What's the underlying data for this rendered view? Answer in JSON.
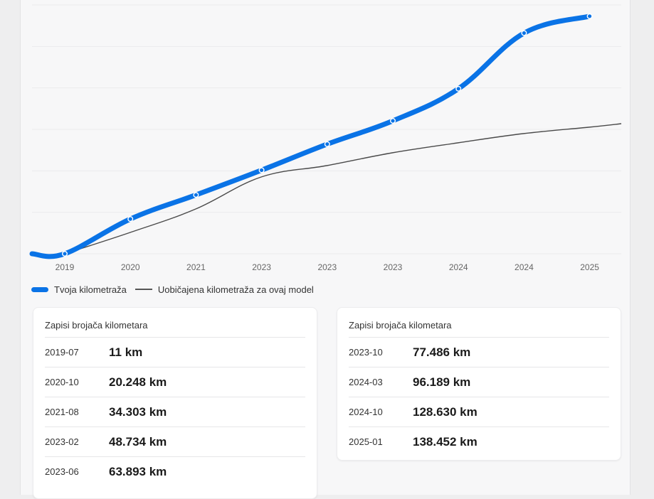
{
  "colors": {
    "user_line": "#0a73e6",
    "typical_line": "#4a4a4a"
  },
  "chart_data": {
    "type": "line",
    "x_tick_labels": [
      "2019",
      "2020",
      "2021",
      "2023",
      "2023",
      "2023",
      "2024",
      "2024",
      "2025"
    ],
    "series": [
      {
        "name": "Tvoja kilometraža",
        "dates": [
          "2019-07",
          "2020-10",
          "2021-08",
          "2023-02",
          "2023-06",
          "2023-10",
          "2024-03",
          "2024-10",
          "2025-01"
        ],
        "values": [
          11,
          20248,
          34303,
          48734,
          63893,
          77486,
          96189,
          128630,
          138452
        ]
      },
      {
        "name": "Uobičajena kilometraža za ovaj model"
      }
    ],
    "ylim": [
      0,
      145000
    ],
    "grid": true,
    "legend": "bottom-left"
  },
  "legend": {
    "user": "Tvoja kilometraža",
    "typical": "Uobičajena kilometraža za ovaj model"
  },
  "records_left": {
    "title": "Zapisi brojača kilometara",
    "rows": [
      {
        "date": "2019-07",
        "km": "11 km"
      },
      {
        "date": "2020-10",
        "km": "20.248 km"
      },
      {
        "date": "2021-08",
        "km": "34.303 km"
      },
      {
        "date": "2023-02",
        "km": "48.734 km"
      },
      {
        "date": "2023-06",
        "km": "63.893 km"
      }
    ]
  },
  "records_right": {
    "title": "Zapisi brojača kilometara",
    "rows": [
      {
        "date": "2023-10",
        "km": "77.486 km"
      },
      {
        "date": "2024-03",
        "km": "96.189 km"
      },
      {
        "date": "2024-10",
        "km": "128.630 km"
      },
      {
        "date": "2025-01",
        "km": "138.452 km"
      }
    ]
  }
}
